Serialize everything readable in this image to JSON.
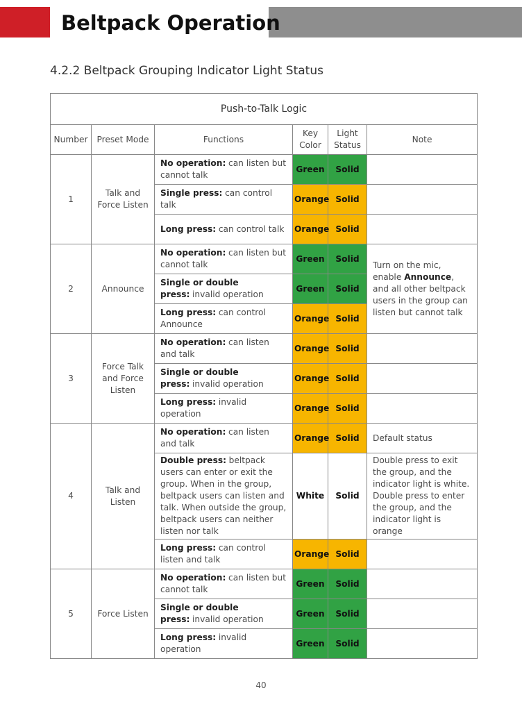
{
  "header": {
    "title": "Beltpack Operation"
  },
  "section": {
    "heading": "4.2.2 Beltpack Grouping Indicator Light Status"
  },
  "table": {
    "caption": "Push-to-Talk Logic",
    "columns": [
      "Number",
      "Preset Mode",
      "Functions",
      "Key Color",
      "Light Status",
      "Note"
    ],
    "colors": {
      "Green": "#31a244",
      "Orange": "#f7b500",
      "White": "#ffffff"
    },
    "groups": [
      {
        "number": "1",
        "preset_mode": "Talk and Force Listen",
        "rows": [
          {
            "function": {
              "action": "No operation:",
              "text": "can listen but cannot talk"
            },
            "key_color": "Green",
            "light_status": "Solid"
          },
          {
            "function": {
              "action": "Single press:",
              "text": "can control talk"
            },
            "key_color": "Orange",
            "light_status": "Solid"
          },
          {
            "function": {
              "action": "Long press:",
              "text": "can control talk"
            },
            "key_color": "Orange",
            "light_status": "Solid"
          }
        ]
      },
      {
        "number": "2",
        "preset_mode": "Announce",
        "note": [
          [
            {
              "text": "Turn on the mic, enable "
            },
            {
              "text": "Announce",
              "bold": true
            },
            {
              "text": ", and all other beltpack users in the group can listen but cannot talk"
            }
          ]
        ],
        "rows": [
          {
            "function": {
              "action": "No operation:",
              "text": "can listen but cannot talk"
            },
            "key_color": "Green",
            "light_status": "Solid"
          },
          {
            "function": {
              "action": "Single or double press:",
              "text": "invalid operation"
            },
            "key_color": "Green",
            "light_status": "Solid"
          },
          {
            "function": {
              "action": "Long press:",
              "text": "can control Announce"
            },
            "key_color": "Orange",
            "light_status": "Solid"
          }
        ]
      },
      {
        "number": "3",
        "preset_mode": "Force Talk and Force Listen",
        "rows": [
          {
            "function": {
              "action": "No operation:",
              "text": "can listen and talk"
            },
            "key_color": "Orange",
            "light_status": "Solid"
          },
          {
            "function": {
              "action": "Single or double press:",
              "text": "invalid operation"
            },
            "key_color": "Orange",
            "light_status": "Solid"
          },
          {
            "function": {
              "action": "Long press:",
              "text": "invalid operation"
            },
            "key_color": "Orange",
            "light_status": "Solid"
          }
        ]
      },
      {
        "number": "4",
        "preset_mode": "Talk and Listen",
        "rows": [
          {
            "function": {
              "action": "No operation:",
              "text": "can listen and talk"
            },
            "key_color": "Orange",
            "light_status": "Solid",
            "note": [
              [
                {
                  "text": "Default status"
                }
              ]
            ]
          },
          {
            "function": {
              "action": "Double press:",
              "text": "beltpack users can enter or exit the group. When in the group, beltpack users can listen and talk. When outside the group, beltpack users can neither listen nor talk"
            },
            "key_color": "White",
            "light_status": "Solid",
            "note": [
              [
                {
                  "text": "Double press to exit the group, and the indicator light is white."
                }
              ],
              [
                {
                  "text": "Double press to enter the group, and the indicator light is orange"
                }
              ]
            ]
          },
          {
            "function": {
              "action": "Long press:",
              "text": "can control listen and talk"
            },
            "key_color": "Orange",
            "light_status": "Solid"
          }
        ]
      },
      {
        "number": "5",
        "preset_mode": "Force Listen",
        "rows": [
          {
            "function": {
              "action": "No operation:",
              "text": "can listen but cannot talk"
            },
            "key_color": "Green",
            "light_status": "Solid"
          },
          {
            "function": {
              "action": "Single or double press:",
              "text": "invalid operation"
            },
            "key_color": "Green",
            "light_status": "Solid"
          },
          {
            "function": {
              "action": "Long press:",
              "text": "invalid operation"
            },
            "key_color": "Green",
            "light_status": "Solid"
          }
        ]
      }
    ]
  },
  "footer": {
    "page_number": "40"
  }
}
